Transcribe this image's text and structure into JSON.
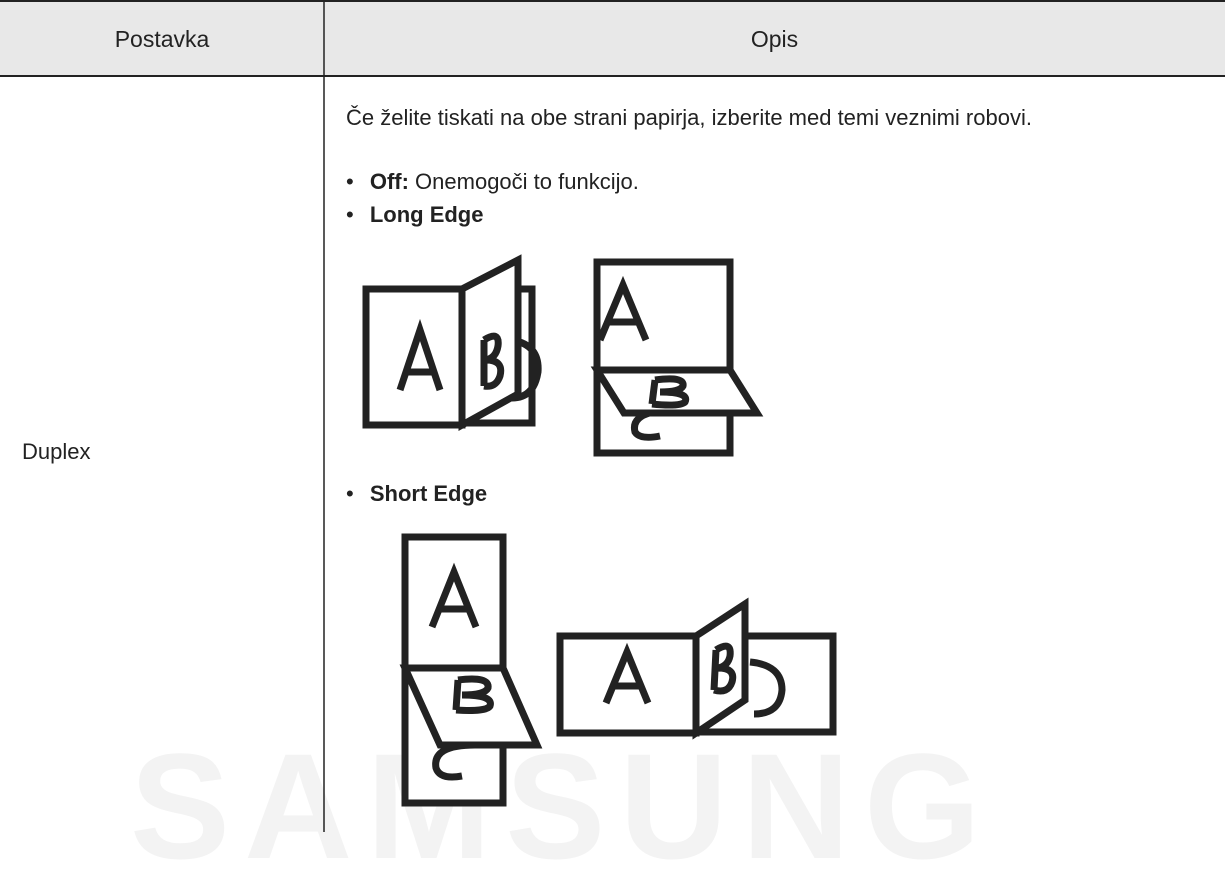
{
  "table": {
    "header": [
      "Postavka",
      "Opis"
    ],
    "rows": [
      {
        "setting": "Duplex",
        "description": {
          "intro": "Če želite tiskati na obe strani papirja, izberite med temi veznimi robovi.",
          "options": [
            {
              "label": "Off:",
              "text": "Onemogoči to funkcijo."
            },
            {
              "label": "Long Edge"
            },
            {
              "label": "Short Edge"
            }
          ]
        }
      }
    ]
  },
  "watermark": "SAMSUNG"
}
